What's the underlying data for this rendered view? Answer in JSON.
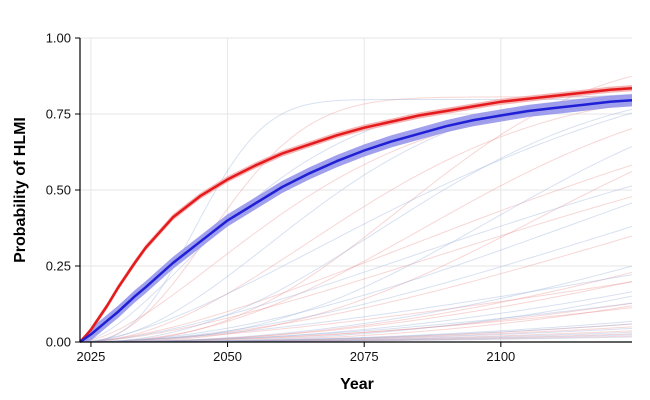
{
  "chart_data": {
    "type": "line",
    "title": "",
    "xlabel": "Year",
    "ylabel": "Probability of HLMI",
    "xlim": [
      2023,
      2124
    ],
    "ylim": [
      0,
      1
    ],
    "x_ticks": [
      2025,
      2050,
      2075,
      2100
    ],
    "x_tick_labels": [
      "2025",
      "2050",
      "2075",
      "2100"
    ],
    "y_ticks": [
      0,
      0.25,
      0.5,
      0.75,
      1
    ],
    "y_tick_labels": [
      "0.00",
      "0.25",
      "0.50",
      "0.75",
      "1.00"
    ],
    "grid": true,
    "legend": "none",
    "series": [
      {
        "color": "#e41a1c",
        "band_color": "#f4a6a6",
        "x": [
          2023,
          2025,
          2028,
          2030,
          2033,
          2035,
          2040,
          2045,
          2050,
          2055,
          2060,
          2065,
          2070,
          2075,
          2080,
          2085,
          2090,
          2095,
          2100,
          2105,
          2110,
          2115,
          2120,
          2124
        ],
        "values": [
          0.0,
          0.04,
          0.12,
          0.18,
          0.26,
          0.31,
          0.41,
          0.48,
          0.535,
          0.58,
          0.62,
          0.65,
          0.68,
          0.705,
          0.725,
          0.745,
          0.76,
          0.775,
          0.79,
          0.8,
          0.81,
          0.82,
          0.83,
          0.835
        ],
        "band_halfwidth": 0.01
      },
      {
        "color": "#1f1fd6",
        "band_color": "#8f8fea",
        "x": [
          2023,
          2025,
          2028,
          2030,
          2033,
          2035,
          2040,
          2045,
          2050,
          2055,
          2060,
          2065,
          2070,
          2075,
          2080,
          2085,
          2090,
          2095,
          2100,
          2105,
          2110,
          2115,
          2120,
          2124
        ],
        "values": [
          0.0,
          0.025,
          0.07,
          0.1,
          0.15,
          0.18,
          0.26,
          0.33,
          0.4,
          0.455,
          0.51,
          0.555,
          0.595,
          0.63,
          0.66,
          0.685,
          0.71,
          0.73,
          0.745,
          0.76,
          0.77,
          0.78,
          0.79,
          0.795
        ],
        "band_halfwidth": 0.02
      }
    ],
    "background_red": [
      [
        0.45,
        0.05
      ],
      [
        0.6,
        0.08
      ],
      [
        0.8,
        0.1
      ],
      [
        1.0,
        0.12
      ],
      [
        1.2,
        0.15
      ],
      [
        1.5,
        0.2
      ],
      [
        1.8,
        0.25
      ],
      [
        2.2,
        0.3
      ],
      [
        2.6,
        0.35
      ],
      [
        3.0,
        0.4
      ],
      [
        3.4,
        0.45
      ],
      [
        3.9,
        0.55
      ],
      [
        4.5,
        0.65
      ],
      [
        5.2,
        0.75
      ],
      [
        0.3,
        0.04
      ],
      [
        0.7,
        0.2
      ],
      [
        1.1,
        0.3
      ],
      [
        2.0,
        0.5
      ],
      [
        2.5,
        0.6
      ],
      [
        6.0,
        1.0
      ]
    ],
    "background_blue": [
      [
        0.35,
        0.05
      ],
      [
        0.5,
        0.07
      ],
      [
        0.7,
        0.09
      ],
      [
        0.9,
        0.11
      ],
      [
        1.1,
        0.13
      ],
      [
        1.4,
        0.18
      ],
      [
        1.7,
        0.22
      ],
      [
        2.0,
        0.28
      ],
      [
        2.4,
        0.33
      ],
      [
        2.8,
        0.38
      ],
      [
        3.2,
        0.43
      ],
      [
        3.6,
        0.5
      ],
      [
        4.1,
        0.58
      ],
      [
        4.8,
        0.68
      ],
      [
        5.5,
        0.8
      ],
      [
        0.25,
        0.03
      ],
      [
        0.8,
        0.25
      ],
      [
        1.3,
        0.35
      ],
      [
        2.2,
        0.55
      ],
      [
        6.5,
        1.0
      ]
    ]
  }
}
